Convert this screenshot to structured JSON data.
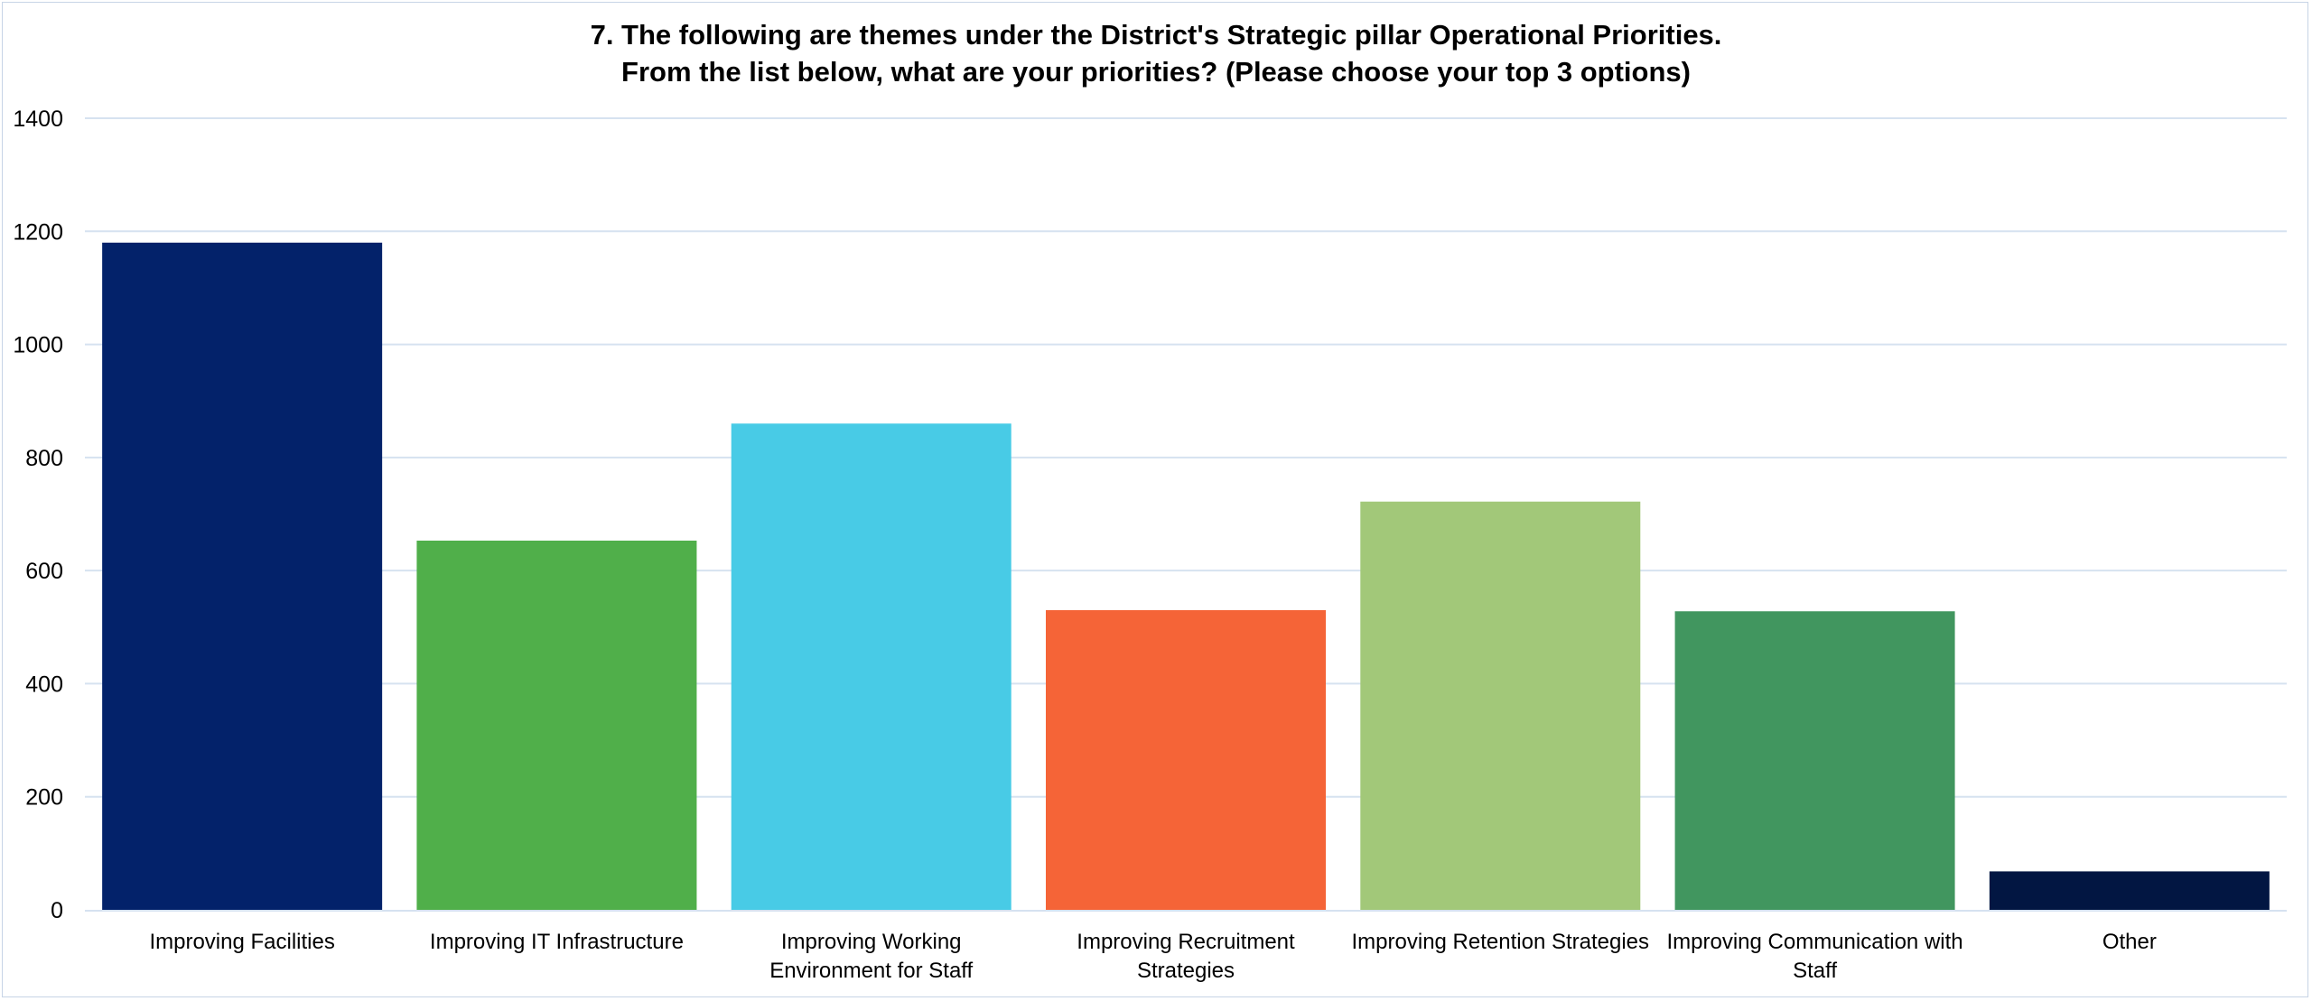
{
  "chart_data": {
    "type": "bar",
    "title_lines": [
      "7. The following are themes under the District's Strategic pillar Operational Priorities.",
      "From the list below, what are your priorities? (Please choose your top 3 options)"
    ],
    "xlabel": "",
    "ylabel": "",
    "categories": [
      [
        "Improving Facilities"
      ],
      [
        "Improving IT Infrastructure"
      ],
      [
        "Improving Working",
        "Environment for Staff"
      ],
      [
        "Improving Recruitment",
        "Strategies"
      ],
      [
        "Improving Retention Strategies"
      ],
      [
        "Improving Communication with",
        "Staff"
      ],
      [
        "Other"
      ]
    ],
    "values": [
      1180,
      653,
      860,
      530,
      722,
      528,
      68
    ],
    "colors": [
      "#03226a",
      "#50af4a",
      "#48cbe6",
      "#f56437",
      "#a2c879",
      "#41965f",
      "#021642"
    ],
    "ylim": [
      0,
      1400
    ],
    "yticks": [
      "0",
      "200",
      "400",
      "600",
      "800",
      "1000",
      "1200",
      "1400"
    ],
    "grid": true,
    "gridline_color": "#d6e2f0",
    "legend": "none"
  }
}
